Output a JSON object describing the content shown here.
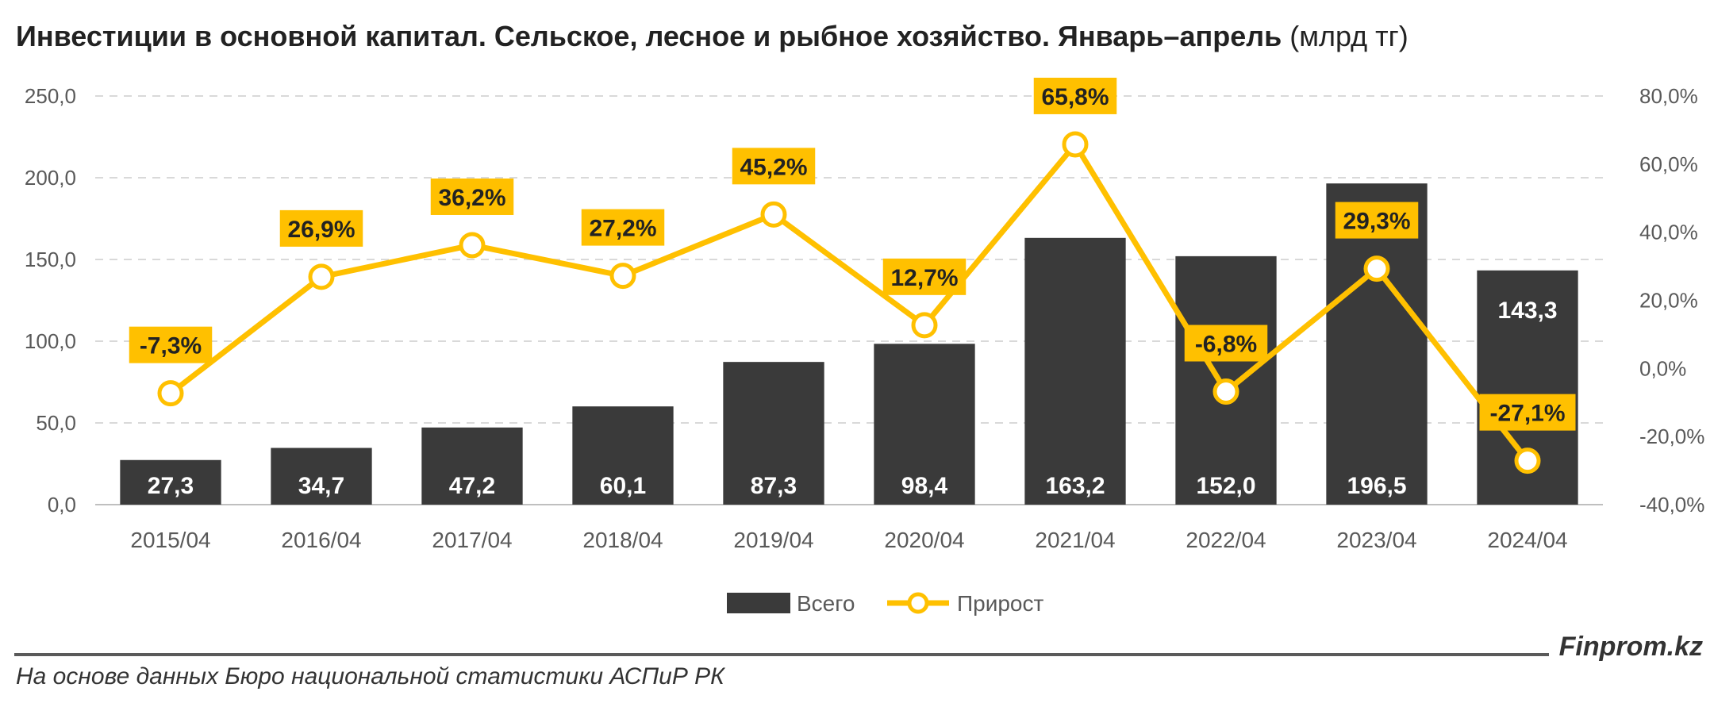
{
  "title": {
    "main": "Инвестиции в основной капитал. Сельское, лесное и рыбное хозяйство. Январь–апрель",
    "unit": "(млрд тг)"
  },
  "colors": {
    "bars": "#3a3a3a",
    "line": "#FFC000",
    "grid": "#d9d9d9",
    "axis_text": "#595959"
  },
  "chart_data": {
    "type": "bar",
    "categories": [
      "2015/04",
      "2016/04",
      "2017/04",
      "2018/04",
      "2019/04",
      "2020/04",
      "2021/04",
      "2022/04",
      "2023/04",
      "2024/04"
    ],
    "series": [
      {
        "name": "Всего",
        "type": "bar",
        "axis": "left",
        "values": [
          27.3,
          34.7,
          47.2,
          60.1,
          87.3,
          98.4,
          163.2,
          152.0,
          196.5,
          143.3
        ],
        "labels": [
          "27,3",
          "34,7",
          "47,2",
          "60,1",
          "87,3",
          "98,4",
          "163,2",
          "152,0",
          "196,5",
          "143,3"
        ]
      },
      {
        "name": "Прирост",
        "type": "line",
        "axis": "right",
        "values": [
          -7.3,
          26.9,
          36.2,
          27.2,
          45.2,
          12.7,
          65.8,
          -6.8,
          29.3,
          -27.1
        ],
        "labels": [
          "-7,3%",
          "26,9%",
          "36,2%",
          "27,2%",
          "45,2%",
          "12,7%",
          "65,8%",
          "-6,8%",
          "29,3%",
          "-27,1%"
        ]
      }
    ],
    "ylim_left": [
      0,
      250
    ],
    "yticks_left": [
      "0,0",
      "50,0",
      "100,0",
      "150,0",
      "200,0",
      "250,0"
    ],
    "ylim_right": [
      -40,
      80
    ],
    "yticks_right": [
      "-40,0%",
      "-20,0%",
      "0,0%",
      "20,0%",
      "40,0%",
      "60,0%",
      "80,0%"
    ],
    "grid": true,
    "legend_position": "bottom"
  },
  "footer": {
    "brand": "Finprom.kz",
    "source": "На основе данных Бюро национальной статистики АСПиР РК"
  }
}
